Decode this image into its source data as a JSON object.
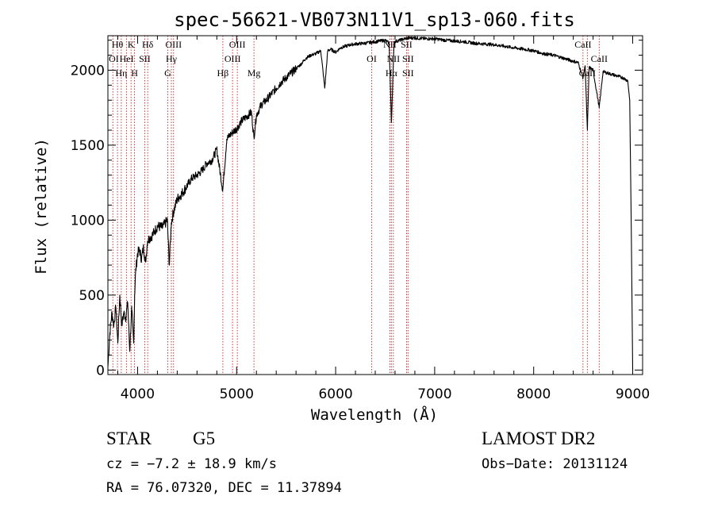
{
  "chart_data": {
    "type": "line",
    "title": "spec-56621-VB073N11V1_sp13-060.fits",
    "xlabel": "Wavelength (Å)",
    "ylabel": "Flux (relative)",
    "xlim": [
      3700,
      9100
    ],
    "ylim": [
      -30,
      2230
    ],
    "x_ticks": [
      4000,
      5000,
      6000,
      7000,
      8000,
      9000
    ],
    "y_ticks": [
      0,
      500,
      1000,
      1500,
      2000
    ],
    "x_tick_labels": [
      "4000",
      "5000",
      "6000",
      "7000",
      "8000",
      "9000"
    ],
    "y_tick_labels": [
      "0",
      "500",
      "1000",
      "1500",
      "2000"
    ],
    "grid": false,
    "series": [
      {
        "x": [
          3700,
          3720,
          3740,
          3760,
          3780,
          3800,
          3820,
          3840,
          3860,
          3880,
          3900,
          3920,
          3940,
          3960,
          3970,
          3980,
          4000,
          4020,
          4040,
          4060,
          4080,
          4100,
          4120,
          4150,
          4200,
          4250,
          4300,
          4320,
          4340,
          4360,
          4400,
          4450,
          4500,
          4550,
          4600,
          4650,
          4700,
          4750,
          4800,
          4860,
          4900,
          4950,
          5000,
          5050,
          5100,
          5150,
          5175,
          5200,
          5250,
          5300,
          5350,
          5400,
          5450,
          5500,
          5550,
          5600,
          5650,
          5700,
          5750,
          5800,
          5850,
          5890,
          5920,
          5950,
          6000,
          6050,
          6100,
          6150,
          6200,
          6300,
          6400,
          6500,
          6540,
          6563,
          6590,
          6650,
          6700,
          6750,
          6800,
          6900,
          7000,
          7100,
          7200,
          7300,
          7400,
          7500,
          7600,
          7700,
          7800,
          7900,
          8000,
          8100,
          8200,
          8300,
          8400,
          8450,
          8498,
          8520,
          8542,
          8560,
          8600,
          8662,
          8700,
          8750,
          8800,
          8850,
          8900,
          8950,
          8970,
          8985,
          9000
        ],
        "y": [
          20,
          250,
          380,
          300,
          420,
          180,
          500,
          300,
          380,
          350,
          450,
          130,
          400,
          180,
          500,
          650,
          780,
          800,
          740,
          820,
          720,
          860,
          880,
          900,
          960,
          950,
          1000,
          700,
          980,
          1050,
          1140,
          1180,
          1230,
          1280,
          1300,
          1330,
          1380,
          1400,
          1470,
          1200,
          1540,
          1580,
          1610,
          1660,
          1690,
          1720,
          1550,
          1700,
          1770,
          1800,
          1840,
          1880,
          1920,
          1950,
          1980,
          2010,
          2040,
          2080,
          2100,
          2110,
          2130,
          1880,
          2130,
          2140,
          2120,
          2150,
          2160,
          2170,
          2175,
          2180,
          2190,
          2200,
          2180,
          1650,
          2190,
          2200,
          2210,
          2215,
          2215,
          2210,
          2210,
          2200,
          2195,
          2190,
          2180,
          2175,
          2170,
          2160,
          2150,
          2140,
          2130,
          2110,
          2100,
          2080,
          2060,
          2050,
          1950,
          2030,
          1600,
          2020,
          2000,
          1750,
          1990,
          1980,
          1970,
          1960,
          1950,
          1930,
          1800,
          1000,
          0
        ]
      }
    ],
    "lines": [
      {
        "x": 3750,
        "labels": []
      },
      {
        "x": 3797,
        "labels": [
          "Hθ"
        ]
      },
      {
        "x": 3835,
        "labels": []
      },
      {
        "x": 3889,
        "labels": [
          "HeI"
        ]
      },
      {
        "x": 3934,
        "labels": [
          "K"
        ]
      },
      {
        "x": 3969,
        "labels": [
          "H"
        ]
      },
      {
        "x": 4072,
        "labels": [
          "SII"
        ]
      },
      {
        "x": 4102,
        "labels": [
          "Hδ"
        ]
      },
      {
        "x": 4305,
        "labels": [
          "G"
        ]
      },
      {
        "x": 4341,
        "labels": [
          "Hγ"
        ]
      },
      {
        "x": 4363,
        "labels": [
          "OIII"
        ]
      },
      {
        "x": 4861,
        "labels": [
          "Hβ"
        ]
      },
      {
        "x": 4959,
        "labels": [
          "OIII"
        ]
      },
      {
        "x": 5007,
        "labels": [
          "OIII"
        ]
      },
      {
        "x": 5175,
        "labels": [
          "Mg"
        ]
      },
      {
        "x": 6364,
        "labels": [
          "OI"
        ]
      },
      {
        "x": 6548,
        "labels": [
          "NII"
        ]
      },
      {
        "x": 6563,
        "labels": [
          "Hα"
        ]
      },
      {
        "x": 6583,
        "labels": [
          "NII"
        ]
      },
      {
        "x": 6716,
        "labels": [
          "SII"
        ]
      },
      {
        "x": 6731,
        "labels": [
          "SII"
        ]
      },
      {
        "x": 8498,
        "labels": [
          "CaII"
        ]
      },
      {
        "x": 8542,
        "labels": [
          "CaII"
        ]
      },
      {
        "x": 8662,
        "labels": [
          "CaII"
        ]
      }
    ],
    "line_labels": [
      {
        "text": "Hθ",
        "x": 3797,
        "row": 0
      },
      {
        "text": "OI",
        "x": 3760,
        "row": 1
      },
      {
        "text": "Hη",
        "x": 3835,
        "row": 2
      },
      {
        "text": "K",
        "x": 3934,
        "row": 0
      },
      {
        "text": "HeI",
        "x": 3889,
        "row": 1
      },
      {
        "text": "H",
        "x": 3969,
        "row": 2
      },
      {
        "text": "Hδ",
        "x": 4102,
        "row": 0
      },
      {
        "text": "SII",
        "x": 4072,
        "row": 1
      },
      {
        "text": "OIII",
        "x": 4363,
        "row": 0
      },
      {
        "text": "Hγ",
        "x": 4341,
        "row": 1
      },
      {
        "text": "G",
        "x": 4305,
        "row": 2
      },
      {
        "text": "Hβ",
        "x": 4861,
        "row": 2
      },
      {
        "text": "OIII",
        "x": 5007,
        "row": 0
      },
      {
        "text": "OIII",
        "x": 4959,
        "row": 1
      },
      {
        "text": "Mg",
        "x": 5175,
        "row": 2
      },
      {
        "text": "OI",
        "x": 6364,
        "row": 1
      },
      {
        "text": "NII",
        "x": 6548,
        "row": 0
      },
      {
        "text": "Hα",
        "x": 6563,
        "row": 2
      },
      {
        "text": "NII",
        "x": 6583,
        "row": 1
      },
      {
        "text": "SII",
        "x": 6716,
        "row": 0
      },
      {
        "text": "SII",
        "x": 6731,
        "row": 1
      },
      {
        "text": "SII",
        "x": 6731,
        "row": 2
      },
      {
        "text": "CaII",
        "x": 8498,
        "row": 0
      },
      {
        "text": "CaII",
        "x": 8542,
        "row": 2
      },
      {
        "text": "CaII",
        "x": 8662,
        "row": 1
      }
    ],
    "colors": {
      "spectrum": "#000000",
      "lines": "#cc2222"
    }
  },
  "info": {
    "object_class": "STAR",
    "subclass": "G5",
    "survey": "LAMOST DR2",
    "cz": "cz = −7.2 ± 18.9 km/s",
    "obs_date": "Obs−Date: 20131124",
    "coords": "RA =  76.07320, DEC =  11.37894"
  }
}
